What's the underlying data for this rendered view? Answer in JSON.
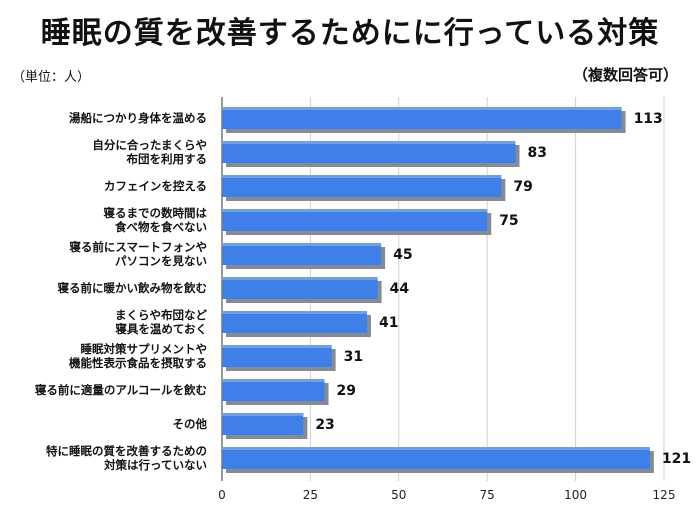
{
  "title": "睡眠の質を改善するためにに行っている対策",
  "unit_note": "（単位：人）",
  "multi_answer_note": "（複数回答可）",
  "chart_data": {
    "type": "bar",
    "orientation": "horizontal",
    "title": "睡眠の質を改善するためにに行っている対策",
    "categories": [
      [
        "湯船につかり身体を温める"
      ],
      [
        "自分に合ったまくらや",
        "布団を利用する"
      ],
      [
        "カフェインを控える"
      ],
      [
        "寝るまでの数時間は",
        "食べ物を食べない"
      ],
      [
        "寝る前にスマートフォンや",
        "パソコンを見ない"
      ],
      [
        "寝る前に暖かい飲み物を飲む"
      ],
      [
        "まくらや布団など",
        "寝具を温めておく"
      ],
      [
        "睡眠対策サプリメントや",
        "機能性表示食品を摂取する"
      ],
      [
        "寝る前に適量のアルコールを飲む"
      ],
      [
        "その他"
      ],
      [
        "特に睡眠の質を改善するための",
        "対策は行っていない"
      ]
    ],
    "values": [
      113,
      83,
      79,
      75,
      45,
      44,
      41,
      31,
      29,
      23,
      121
    ],
    "xlim": [
      0,
      125
    ],
    "xticks": [
      "0",
      "25",
      "50",
      "75",
      "100",
      "125"
    ],
    "xlabel": "",
    "ylabel": "",
    "grid": true,
    "bar_color": "#3f7fe8"
  }
}
